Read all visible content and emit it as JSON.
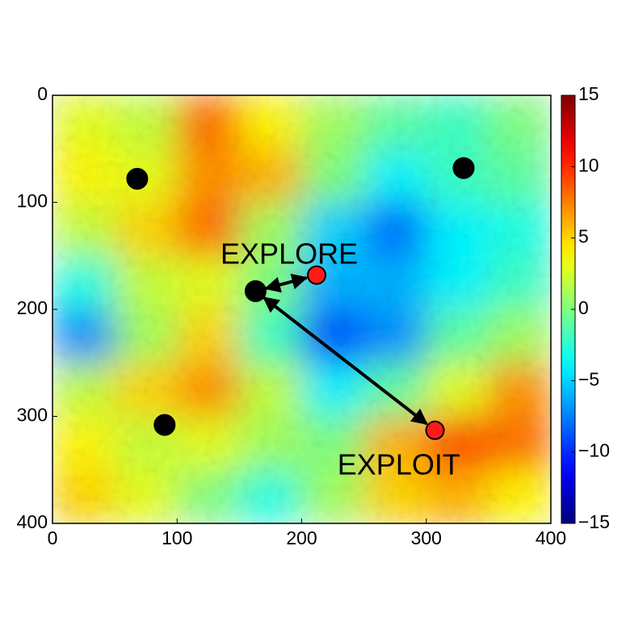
{
  "chart_data": {
    "type": "heatmap",
    "xlim": [
      0,
      400
    ],
    "ylim": [
      0,
      400
    ],
    "y_inverted": true,
    "xticks": [
      0,
      100,
      200,
      300,
      400
    ],
    "yticks": [
      0,
      100,
      200,
      300,
      400
    ],
    "z": [
      [
        3,
        2,
        8,
        4,
        1,
        -1,
        -2,
        0
      ],
      [
        4,
        3,
        7,
        6,
        0,
        -4,
        -2,
        -1
      ],
      [
        2,
        5,
        8,
        1,
        -5,
        -8,
        -4,
        -3
      ],
      [
        -3,
        2,
        3,
        0,
        -6,
        -6,
        -4,
        -2
      ],
      [
        -7,
        1,
        5,
        -2,
        -9,
        -7,
        -1,
        1
      ],
      [
        2,
        5,
        7,
        2,
        -4,
        -1,
        3,
        7
      ],
      [
        4,
        2,
        3,
        1,
        0,
        6,
        9,
        8
      ],
      [
        5,
        3,
        0,
        -3,
        1,
        5,
        6,
        4
      ]
    ],
    "colormap": "jet",
    "colorbar": {
      "lim": [
        -15,
        15
      ],
      "ticks": [
        {
          "value": -15,
          "label": "−15"
        },
        {
          "value": -10,
          "label": "−10"
        },
        {
          "value": -5,
          "label": "−5"
        },
        0,
        5,
        10,
        15
      ]
    },
    "series": [
      {
        "color": "#000000",
        "x": [
          68,
          330,
          163,
          90
        ],
        "y": [
          78,
          68,
          183,
          308
        ]
      },
      {
        "color": "#ff1a1a",
        "x": [
          212,
          307
        ],
        "y": [
          168,
          313
        ]
      }
    ],
    "arrows": [
      {
        "from": [
          163,
          183
        ],
        "to": [
          212,
          168
        ]
      },
      {
        "from": [
          163,
          183
        ],
        "to": [
          307,
          313
        ]
      }
    ],
    "annotations": [
      {
        "text": "EXPLORE",
        "x": 190,
        "y": 150,
        "color": "#c8322a"
      },
      {
        "text": "EXPLOIT",
        "x": 278,
        "y": 347,
        "color": "#c8322a"
      }
    ]
  }
}
